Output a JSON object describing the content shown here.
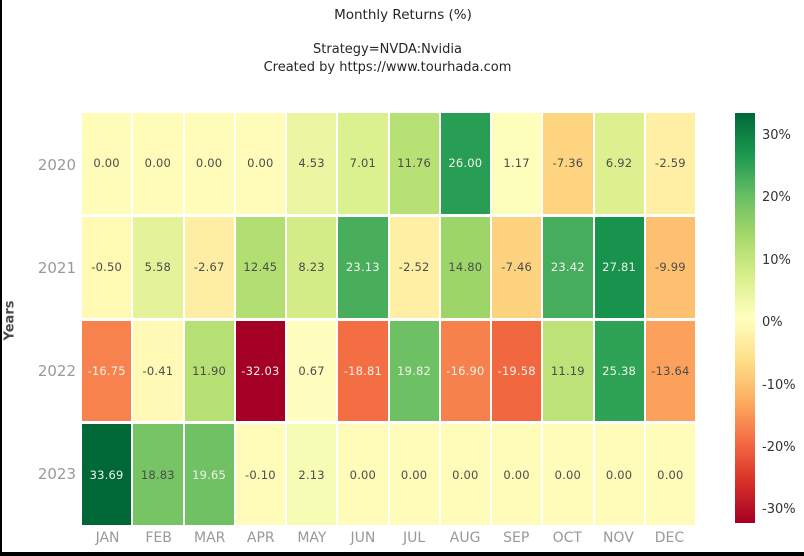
{
  "chart_data": {
    "type": "heatmap",
    "title": "Monthly Returns (%)",
    "subtitle1": "Strategy=NVDA:Nvidia",
    "subtitle2": "Created by https://www.tourhada.com",
    "ylabel": "Years",
    "xlabel": "",
    "columns": [
      "JAN",
      "FEB",
      "MAR",
      "APR",
      "MAY",
      "JUN",
      "JUL",
      "AUG",
      "SEP",
      "OCT",
      "NOV",
      "DEC"
    ],
    "rows": [
      "2020",
      "2021",
      "2022",
      "2023"
    ],
    "values": [
      [
        0.0,
        0.0,
        0.0,
        0.0,
        4.53,
        7.01,
        11.76,
        26.0,
        1.17,
        -7.36,
        6.92,
        -2.59
      ],
      [
        -0.5,
        5.58,
        -2.67,
        12.45,
        8.23,
        23.13,
        -2.52,
        14.8,
        -7.46,
        23.42,
        27.81,
        -9.99
      ],
      [
        -16.75,
        -0.41,
        11.9,
        -32.03,
        0.67,
        -18.81,
        19.82,
        -16.9,
        -19.58,
        11.19,
        25.38,
        -13.64
      ],
      [
        33.69,
        18.83,
        19.65,
        -0.1,
        2.13,
        0.0,
        0.0,
        0.0,
        0.0,
        0.0,
        0.0,
        0.0
      ]
    ],
    "value_decimals": 2,
    "vmin": -32.03,
    "vmax": 33.69,
    "grid_on": false,
    "legend_position": "right-colorbar",
    "colorbar_ticks": [
      {
        "label": "30%",
        "value": 30
      },
      {
        "label": "20%",
        "value": 20
      },
      {
        "label": "10%",
        "value": 10
      },
      {
        "label": "0%",
        "value": 0
      },
      {
        "label": "-10%",
        "value": -10
      },
      {
        "label": "-20%",
        "value": -20
      },
      {
        "label": "-30%",
        "value": -30
      }
    ],
    "colormap": {
      "name": "RdYlGn",
      "stops": [
        "#a50026",
        "#d73027",
        "#f46d43",
        "#fdae61",
        "#fee08b",
        "#ffffbf",
        "#d9ef8b",
        "#a6d96a",
        "#66bd63",
        "#1a9850",
        "#006837"
      ]
    }
  },
  "colors": {
    "annotation_dark": "#4d4d4d",
    "annotation_light": "#f2f2ea",
    "axis_tick_gray": "#999999",
    "colorbar_tick": "#333333",
    "axis_label": "#4a4a4a",
    "background": "#ffffff"
  }
}
